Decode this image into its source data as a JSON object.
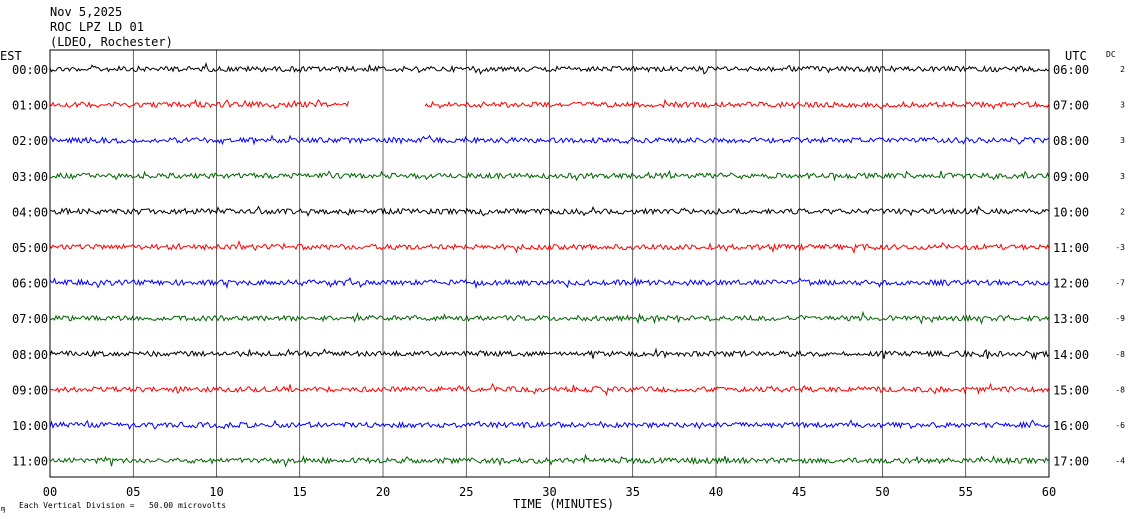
{
  "header": {
    "date": "Nov 5,2025",
    "station": "ROC LPZ LD 01",
    "network": "(LDEO, Rochester)"
  },
  "labels": {
    "left_tz": "EST",
    "right_tz": "UTC",
    "dc": "DC",
    "xlabel": "TIME (MINUTES)",
    "footnote": "Each Vertical Division =   50.00 microvolts",
    "footnote_mark": "ɱ"
  },
  "colors": [
    "#000000",
    "#ff0000",
    "#0000ff",
    "#006400"
  ],
  "chart_data": {
    "type": "line",
    "title": "ROC LPZ LD 01",
    "xlabel": "TIME (MINUTES)",
    "xlim": [
      0,
      60
    ],
    "x_ticks": [
      "00",
      "05",
      "10",
      "15",
      "20",
      "25",
      "30",
      "35",
      "40",
      "45",
      "50",
      "55",
      "60"
    ],
    "grid": true,
    "rows": [
      {
        "est": "00:00",
        "utc": "06:00",
        "dc": "2",
        "color": "#000000"
      },
      {
        "est": "01:00",
        "utc": "07:00",
        "dc": "3",
        "color": "#ff0000",
        "gap": [
          18,
          22.5
        ]
      },
      {
        "est": "02:00",
        "utc": "08:00",
        "dc": "3",
        "color": "#0000ff"
      },
      {
        "est": "03:00",
        "utc": "09:00",
        "dc": "3",
        "color": "#006400"
      },
      {
        "est": "04:00",
        "utc": "10:00",
        "dc": "2",
        "color": "#000000"
      },
      {
        "est": "05:00",
        "utc": "11:00",
        "dc": "-3",
        "color": "#ff0000"
      },
      {
        "est": "06:00",
        "utc": "12:00",
        "dc": "-7",
        "color": "#0000ff"
      },
      {
        "est": "07:00",
        "utc": "13:00",
        "dc": "-9",
        "color": "#006400"
      },
      {
        "est": "08:00",
        "utc": "14:00",
        "dc": "-8",
        "color": "#000000"
      },
      {
        "est": "09:00",
        "utc": "15:00",
        "dc": "-8",
        "color": "#ff0000"
      },
      {
        "est": "10:00",
        "utc": "16:00",
        "dc": "-6",
        "color": "#0000ff"
      },
      {
        "est": "11:00",
        "utc": "17:00",
        "dc": "-4",
        "color": "#006400"
      }
    ]
  }
}
